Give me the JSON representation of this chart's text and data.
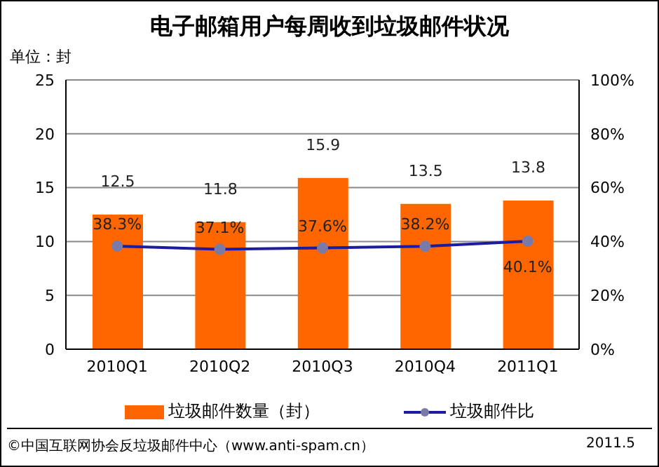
{
  "chart_data": {
    "type": "bar",
    "title": "电子邮箱用户每周收到垃圾邮件状况",
    "ylabel": "单位：封",
    "categories": [
      "2010Q1",
      "2010Q2",
      "2010Q3",
      "2010Q4",
      "2011Q1"
    ],
    "series": [
      {
        "name": "垃圾邮件数量（封）",
        "color": "#ff6600",
        "values": [
          12.5,
          11.8,
          15.9,
          13.5,
          13.8
        ],
        "value_labels": [
          "12.5",
          "11.8",
          "15.9",
          "13.5",
          "13.8"
        ]
      },
      {
        "name": "垃圾邮件比",
        "type": "line",
        "axis": "y2",
        "color": "#1c1ca0",
        "marker": "circle",
        "values": [
          38.3,
          37.1,
          37.6,
          38.2,
          40.1
        ],
        "value_labels": [
          "38.3%",
          "37.1%",
          "37.6%",
          "38.2%",
          "40.1%"
        ]
      }
    ],
    "ylim": [
      0,
      25
    ],
    "yticks": [
      0,
      5,
      10,
      15,
      20,
      25
    ],
    "y2lim": [
      0,
      100
    ],
    "y2ticks": [
      {
        "value": 0,
        "label": "0%"
      },
      {
        "value": 20,
        "label": "20%"
      },
      {
        "value": 40,
        "label": "40%"
      },
      {
        "value": 60,
        "label": "60%"
      },
      {
        "value": 80,
        "label": "80%"
      },
      {
        "value": 100,
        "label": "100%"
      }
    ],
    "grid": "y",
    "legend": "bottom",
    "annotations": [
      "©中国互联网协会反垃圾邮件中心（www.anti-spam.cn）",
      "2011.5"
    ]
  }
}
